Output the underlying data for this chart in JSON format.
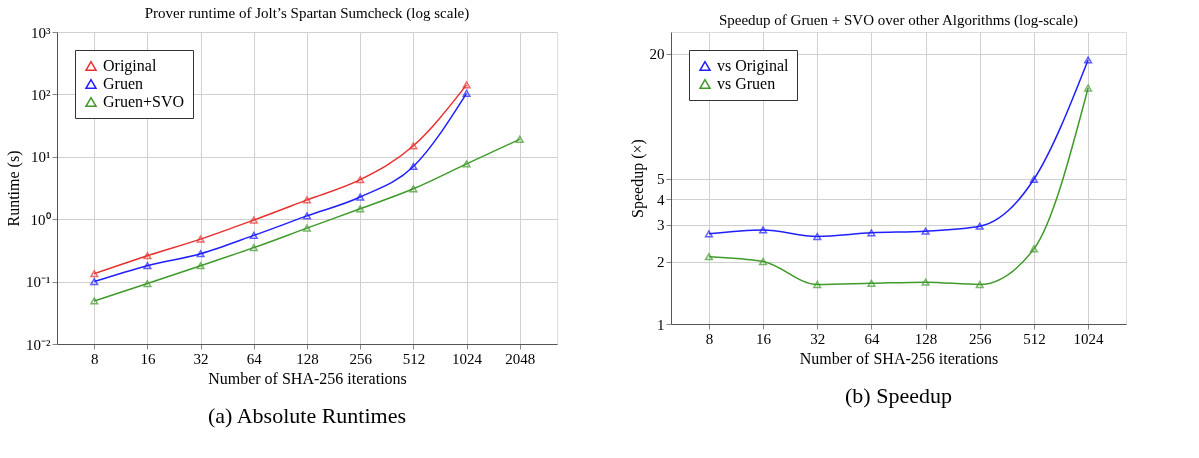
{
  "chart_data": [
    {
      "type": "line",
      "title": "Prover runtime of Jolt’s Spartan Sumcheck (log scale)",
      "xlabel": "Number of SHA-256 iterations",
      "ylabel": "Runtime (s)",
      "categories": [
        "8",
        "16",
        "32",
        "64",
        "128",
        "256",
        "512",
        "1024",
        "2048"
      ],
      "log": "y",
      "ylim": [
        0.01,
        1000
      ],
      "yticks": [
        {
          "value": 0.01,
          "label": "10⁻²"
        },
        {
          "value": 0.1,
          "label": "10⁻¹"
        },
        {
          "value": 1,
          "label": "10⁰"
        },
        {
          "value": 10,
          "label": "10¹"
        },
        {
          "value": 100,
          "label": "10²"
        },
        {
          "value": 1000,
          "label": "10³"
        }
      ],
      "grid": true,
      "legend": "top left",
      "marker": "triangle",
      "line_style": "solid",
      "annotations": [
        "(a) Absolute Runtimes"
      ],
      "series": [
        {
          "name": "Original",
          "color": "#e8312e",
          "values": [
            0.134,
            0.26,
            0.48,
            0.97,
            2.04,
            4.3,
            15,
            142,
            null
          ]
        },
        {
          "name": "Gruen",
          "color": "#1f1fff",
          "values": [
            0.1,
            0.18,
            0.28,
            0.55,
            1.13,
            2.27,
            7.0,
            104,
            null
          ]
        },
        {
          "name": "Gruen+SVO",
          "color": "#3f9a2a",
          "values": [
            0.049,
            0.093,
            0.18,
            0.35,
            0.72,
            1.47,
            3.07,
            7.7,
            19.1
          ]
        }
      ]
    },
    {
      "type": "line",
      "title": "Speedup of Gruen + SVO over other Algorithms (log-scale)",
      "xlabel": "Number of SHA-256 iterations",
      "ylabel": "Speedup (×)",
      "categories": [
        "8",
        "16",
        "32",
        "64",
        "128",
        "256",
        "512",
        "1024"
      ],
      "log": "y",
      "ylim": [
        1,
        25.5
      ],
      "yticks": [
        1,
        2,
        3,
        4,
        5,
        20
      ],
      "grid": true,
      "legend": "top left",
      "marker": "triangle",
      "line_style": "solid",
      "annotations": [
        "(b) Speedup"
      ],
      "series": [
        {
          "name": "vs Original",
          "color": "#1f1fff",
          "values": [
            2.72,
            2.84,
            2.64,
            2.75,
            2.8,
            2.96,
            4.98,
            18.7
          ]
        },
        {
          "name": "vs Gruen",
          "color": "#3f9a2a",
          "values": [
            2.11,
            2.0,
            1.55,
            1.57,
            1.59,
            1.55,
            2.3,
            13.7
          ]
        }
      ]
    }
  ]
}
